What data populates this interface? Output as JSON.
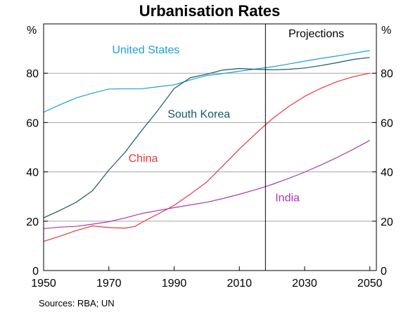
{
  "chart_data": {
    "type": "line",
    "title": "Urbanisation Rates",
    "y_unit_left": "%",
    "y_unit_right": "%",
    "xlim": [
      1950,
      2052
    ],
    "ylim": [
      0,
      100
    ],
    "x_ticks": [
      1950,
      1970,
      1990,
      2010,
      2030,
      2050
    ],
    "y_ticks": [
      0,
      20,
      40,
      60,
      80
    ],
    "grid": "horizontal",
    "projection_start": 2018,
    "projection_label": "Projections",
    "source": "Sources:  RBA; UN",
    "series": [
      {
        "name": "United States",
        "color": "#1ba1d8",
        "points": [
          [
            1950,
            64.2
          ],
          [
            1955,
            67.2
          ],
          [
            1960,
            70.0
          ],
          [
            1965,
            71.9
          ],
          [
            1970,
            73.6
          ],
          [
            1975,
            73.7
          ],
          [
            1980,
            73.7
          ],
          [
            1985,
            74.5
          ],
          [
            1990,
            75.3
          ],
          [
            1995,
            77.3
          ],
          [
            2000,
            79.1
          ],
          [
            2005,
            79.9
          ],
          [
            2010,
            80.8
          ],
          [
            2015,
            81.7
          ],
          [
            2020,
            82.6
          ],
          [
            2025,
            83.7
          ],
          [
            2030,
            84.9
          ],
          [
            2035,
            86.0
          ],
          [
            2040,
            87.0
          ],
          [
            2045,
            88.1
          ],
          [
            2050,
            89.2
          ]
        ]
      },
      {
        "name": "South Korea",
        "color": "#17566b",
        "points": [
          [
            1950,
            21.4
          ],
          [
            1955,
            24.4
          ],
          [
            1960,
            27.7
          ],
          [
            1965,
            32.4
          ],
          [
            1970,
            40.7
          ],
          [
            1975,
            48.0
          ],
          [
            1980,
            56.7
          ],
          [
            1985,
            64.9
          ],
          [
            1990,
            73.8
          ],
          [
            1995,
            78.2
          ],
          [
            2000,
            79.6
          ],
          [
            2005,
            81.3
          ],
          [
            2010,
            81.9
          ],
          [
            2015,
            81.6
          ],
          [
            2020,
            81.4
          ],
          [
            2025,
            81.6
          ],
          [
            2030,
            82.1
          ],
          [
            2035,
            83.1
          ],
          [
            2040,
            84.3
          ],
          [
            2045,
            85.6
          ],
          [
            2050,
            86.4
          ]
        ]
      },
      {
        "name": "China",
        "color": "#e8383d",
        "points": [
          [
            1950,
            11.8
          ],
          [
            1955,
            13.9
          ],
          [
            1960,
            16.2
          ],
          [
            1965,
            18.1
          ],
          [
            1970,
            17.4
          ],
          [
            1975,
            17.2
          ],
          [
            1978,
            17.9
          ],
          [
            1980,
            19.4
          ],
          [
            1985,
            22.9
          ],
          [
            1990,
            26.4
          ],
          [
            1995,
            31.0
          ],
          [
            2000,
            35.9
          ],
          [
            2005,
            42.5
          ],
          [
            2010,
            49.2
          ],
          [
            2015,
            55.5
          ],
          [
            2020,
            61.4
          ],
          [
            2025,
            66.4
          ],
          [
            2030,
            70.6
          ],
          [
            2035,
            73.9
          ],
          [
            2040,
            76.6
          ],
          [
            2045,
            78.6
          ],
          [
            2050,
            80.0
          ]
        ]
      },
      {
        "name": "India",
        "color": "#a23bb4",
        "points": [
          [
            1950,
            17.0
          ],
          [
            1955,
            17.6
          ],
          [
            1960,
            17.9
          ],
          [
            1965,
            18.8
          ],
          [
            1970,
            19.8
          ],
          [
            1975,
            21.3
          ],
          [
            1980,
            23.1
          ],
          [
            1985,
            24.3
          ],
          [
            1990,
            25.5
          ],
          [
            1995,
            26.6
          ],
          [
            2000,
            27.7
          ],
          [
            2005,
            29.2
          ],
          [
            2010,
            30.9
          ],
          [
            2015,
            32.8
          ],
          [
            2020,
            34.9
          ],
          [
            2025,
            37.3
          ],
          [
            2030,
            39.9
          ],
          [
            2035,
            42.8
          ],
          [
            2040,
            45.9
          ],
          [
            2045,
            49.2
          ],
          [
            2050,
            52.8
          ]
        ]
      }
    ]
  }
}
